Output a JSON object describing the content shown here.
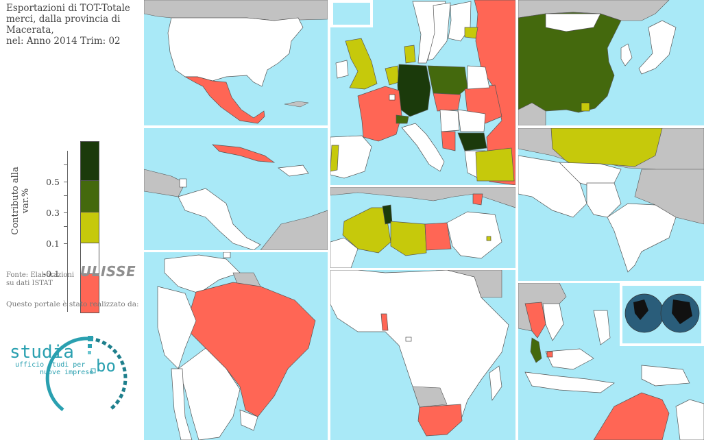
{
  "title_lines": [
    "Esportazioni di TOT-Totale",
    "merci, dalla provincia di",
    "Macerata,",
    "nel: Anno 2014 Trim: 02"
  ],
  "legend": {
    "axis_label": "Contributo alla var.%",
    "ticks": [
      "0.5",
      "0.3",
      "0.1",
      "-0.1"
    ],
    "classes": [
      {
        "color": "#1b3a0b"
      },
      {
        "color": "#44690d"
      },
      {
        "color": "#c6c90b"
      },
      {
        "color": "#ffffff"
      },
      {
        "color": "#ff6655"
      }
    ]
  },
  "source_lines": [
    "Fonte: Elaborazioni",
    "su dati ISTAT"
  ],
  "ulisse_logo": "ULISSE",
  "portal_note": "Questo portale è stato realizzato da:",
  "studiabo": {
    "word": "studia",
    "suffix": "bo",
    "line1": "ufficio studi per",
    "line2": "nuove imprese"
  },
  "colors": {
    "sea": "#a9e9f7",
    "land_other": "#c2c2c2",
    "no_data": "#ffffff",
    "negative": "#ff6655",
    "low": "#c6c90b",
    "mid": "#44690d",
    "high": "#1b3a0b",
    "logo_teal": "#2aa0b0"
  },
  "panels": [
    "north-america",
    "europe",
    "east-asia",
    "caribbean",
    "south-asia",
    "mena",
    "south-america",
    "africa",
    "southeast-asia-oceania"
  ]
}
